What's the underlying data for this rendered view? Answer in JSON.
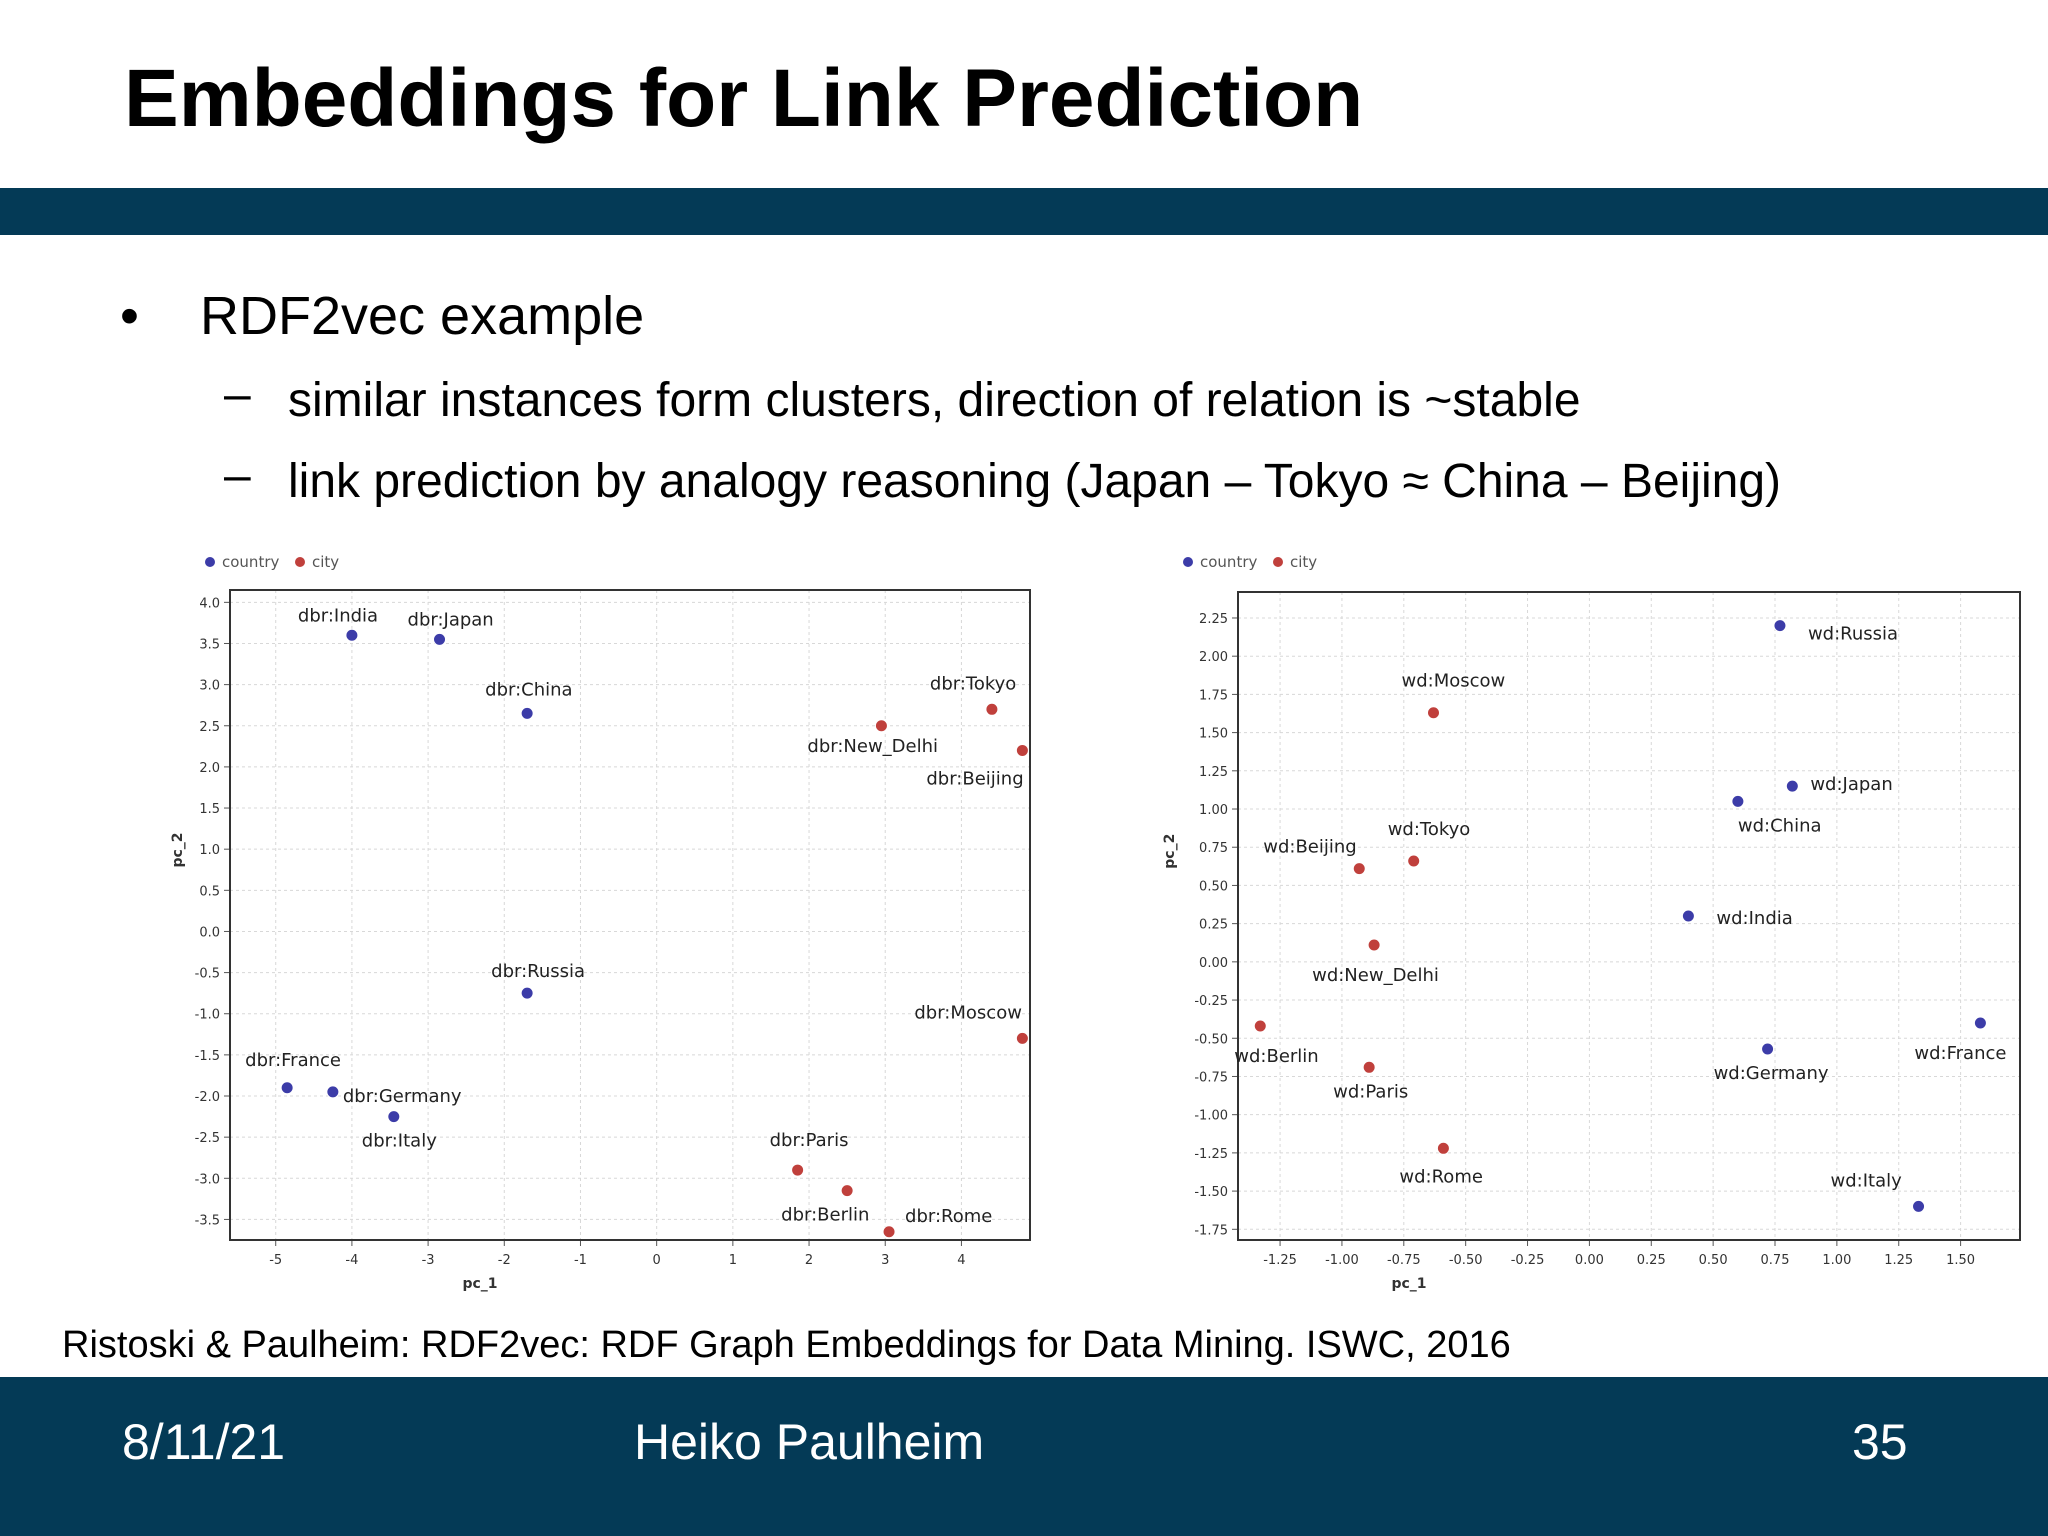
{
  "slide": {
    "title": "Embeddings for Link Prediction",
    "bullet": "RDF2vec example",
    "subbullets": [
      "similar instances form clusters, direction of relation is ~stable",
      "link prediction by analogy reasoning (Japan – Tokyo ≈ China – Beijing)"
    ],
    "bullet_symbol": "•",
    "dash_symbol": "–",
    "citation": "Ristoski & Paulheim: RDF2vec: RDF Graph Embeddings for Data Mining. ISWC, 2016"
  },
  "footer": {
    "date": "8/11/21",
    "author": "Heiko Paulheim",
    "page": "35"
  },
  "colors": {
    "band": "#043a56",
    "country": "#3c3ca8",
    "city": "#c0403c"
  },
  "chart_data": [
    {
      "type": "scatter",
      "title": "",
      "xlabel": "pc_1",
      "ylabel": "pc_2",
      "legend": [
        "country",
        "city"
      ],
      "legend_position": "top-left",
      "xlim": [
        -5.6,
        4.9
      ],
      "ylim": [
        -3.75,
        4.15
      ],
      "xticks": [
        -5,
        -4,
        -3,
        -2,
        -1,
        0,
        1,
        2,
        3,
        4
      ],
      "yticks": [
        4.0,
        3.5,
        3.0,
        2.5,
        2.0,
        1.5,
        1.0,
        0.5,
        0.0,
        -0.5,
        -1.0,
        -1.5,
        -2.0,
        -2.5,
        -3.0,
        -3.5
      ],
      "ytick_labels": [
        "4.0",
        "3.5",
        "3.0",
        "2.5",
        "2.0",
        "1.5",
        "1.0",
        "0.5",
        "0.0",
        "-0.5",
        "-1.0",
        "-1.5",
        "-2.0",
        "-2.5",
        "-3.0",
        "-3.5"
      ],
      "points": [
        {
          "label": "dbr:India",
          "group": "country",
          "x": -4.0,
          "y": 3.6
        },
        {
          "label": "dbr:Japan",
          "group": "country",
          "x": -2.85,
          "y": 3.55
        },
        {
          "label": "dbr:China",
          "group": "country",
          "x": -1.7,
          "y": 2.65
        },
        {
          "label": "dbr:Russia",
          "group": "country",
          "x": -1.7,
          "y": -0.75
        },
        {
          "label": "dbr:France",
          "group": "country",
          "x": -4.85,
          "y": -1.9
        },
        {
          "label": "dbr:Germany",
          "group": "country",
          "x": -4.25,
          "y": -1.95
        },
        {
          "label": "dbr:Italy",
          "group": "country",
          "x": -3.45,
          "y": -2.25
        },
        {
          "label": "dbr:Tokyo",
          "group": "city",
          "x": 4.4,
          "y": 2.7
        },
        {
          "label": "dbr:New_Delhi",
          "group": "city",
          "x": 2.95,
          "y": 2.5
        },
        {
          "label": "dbr:Beijing",
          "group": "city",
          "x": 4.8,
          "y": 2.2
        },
        {
          "label": "dbr:Moscow",
          "group": "city",
          "x": 4.8,
          "y": -1.3
        },
        {
          "label": "dbr:Paris",
          "group": "city",
          "x": 1.85,
          "y": -2.9
        },
        {
          "label": "dbr:Berlin",
          "group": "city",
          "x": 2.5,
          "y": -3.15
        },
        {
          "label": "dbr:Rome",
          "group": "city",
          "x": 3.05,
          "y": -3.65
        }
      ]
    },
    {
      "type": "scatter",
      "title": "",
      "xlabel": "pc_1",
      "ylabel": "pc_2",
      "legend": [
        "country",
        "city"
      ],
      "legend_position": "top-left",
      "xlim": [
        -1.42,
        1.74
      ],
      "ylim": [
        -1.82,
        2.42
      ],
      "xticks": [
        -1.25,
        -1.0,
        -0.75,
        -0.5,
        -0.25,
        0.0,
        0.25,
        0.5,
        0.75,
        1.0,
        1.25,
        1.5
      ],
      "xtick_labels": [
        "-1.25",
        "-1.00",
        "-0.75",
        "-0.50",
        "-0.25",
        "0.00",
        "0.25",
        "0.50",
        "0.75",
        "1.00",
        "1.25",
        "1.50"
      ],
      "yticks": [
        2.25,
        2.0,
        1.75,
        1.5,
        1.25,
        1.0,
        0.75,
        0.5,
        0.25,
        0.0,
        -0.25,
        -0.5,
        -0.75,
        -1.0,
        -1.25,
        -1.5,
        -1.75
      ],
      "ytick_labels": [
        "2.25",
        "2.00",
        "1.75",
        "1.50",
        "1.25",
        "1.00",
        "0.75",
        "0.50",
        "0.25",
        "0.00",
        "-0.25",
        "-0.50",
        "-0.75",
        "-1.00",
        "-1.25",
        "-1.50",
        "-1.75"
      ],
      "points": [
        {
          "label": "wd:Russia",
          "group": "country",
          "x": 0.77,
          "y": 2.2
        },
        {
          "label": "wd:Japan",
          "group": "country",
          "x": 0.82,
          "y": 1.15
        },
        {
          "label": "wd:China",
          "group": "country",
          "x": 0.6,
          "y": 1.05
        },
        {
          "label": "wd:India",
          "group": "country",
          "x": 0.4,
          "y": 0.3
        },
        {
          "label": "wd:Germany",
          "group": "country",
          "x": 0.72,
          "y": -0.57
        },
        {
          "label": "wd:France",
          "group": "country",
          "x": 1.58,
          "y": -0.4
        },
        {
          "label": "wd:Italy",
          "group": "country",
          "x": 1.33,
          "y": -1.6
        },
        {
          "label": "wd:Moscow",
          "group": "city",
          "x": -0.63,
          "y": 1.63
        },
        {
          "label": "wd:Tokyo",
          "group": "city",
          "x": -0.71,
          "y": 0.66
        },
        {
          "label": "wd:Beijing",
          "group": "city",
          "x": -0.93,
          "y": 0.61
        },
        {
          "label": "wd:New_Delhi",
          "group": "city",
          "x": -0.87,
          "y": 0.11
        },
        {
          "label": "wd:Berlin",
          "group": "city",
          "x": -1.33,
          "y": -0.42
        },
        {
          "label": "wd:Paris",
          "group": "city",
          "x": -0.89,
          "y": -0.69
        },
        {
          "label": "wd:Rome",
          "group": "city",
          "x": -0.59,
          "y": -1.22
        }
      ]
    }
  ]
}
